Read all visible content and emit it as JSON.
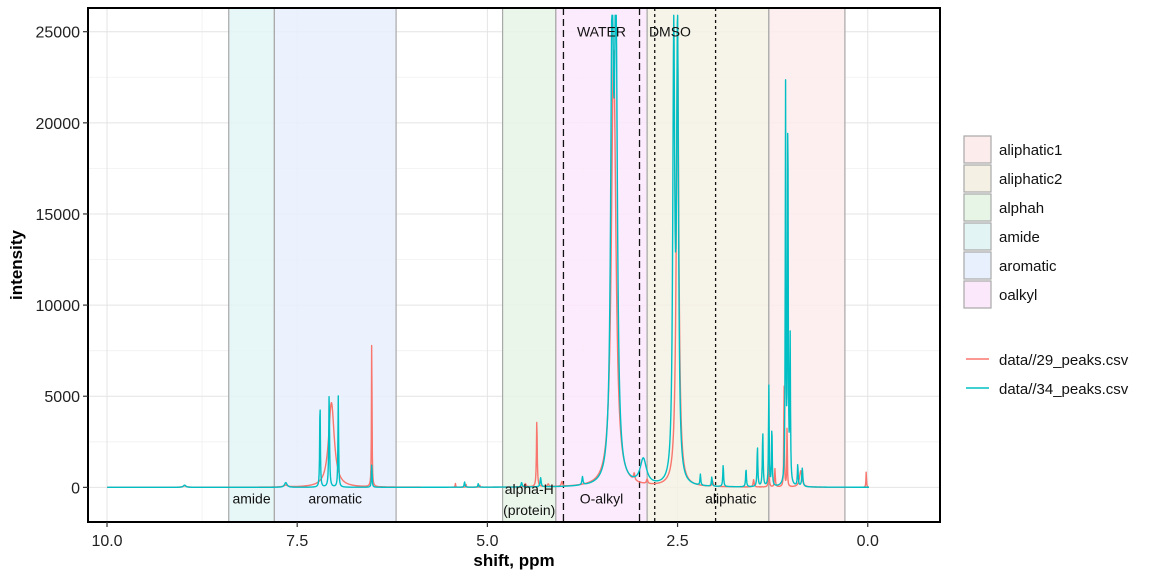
{
  "chart_data": {
    "type": "line",
    "title": "",
    "xlabel": "shift, ppm",
    "ylabel": "intensity",
    "xlim": [
      10.25,
      -0.95
    ],
    "ylim": [
      -1900,
      26300
    ],
    "x_reversed": true,
    "grid": true,
    "legend_position": "right",
    "x_ticks": [
      {
        "value": 10.0,
        "label": "10.0"
      },
      {
        "value": 7.5,
        "label": "7.5"
      },
      {
        "value": 5.0,
        "label": "5.0"
      },
      {
        "value": 2.5,
        "label": "2.5"
      },
      {
        "value": 0.0,
        "label": "0.0"
      }
    ],
    "y_ticks": [
      {
        "value": 0,
        "label": "0"
      },
      {
        "value": 5000,
        "label": "5000"
      },
      {
        "value": 10000,
        "label": "10000"
      },
      {
        "value": 15000,
        "label": "15000"
      },
      {
        "value": 20000,
        "label": "20000"
      },
      {
        "value": 25000,
        "label": "25000"
      }
    ],
    "regions": [
      {
        "name": "amide",
        "from": 8.4,
        "to": 7.8,
        "color": "#e3f4f4"
      },
      {
        "name": "aromatic",
        "from": 7.8,
        "to": 6.2,
        "color": "#e9f0fd"
      },
      {
        "name": "alphah",
        "from": 4.8,
        "to": 4.1,
        "color": "#e6f5e6"
      },
      {
        "name": "oalkyl",
        "from": 4.1,
        "to": 2.9,
        "color": "#fbe8fb"
      },
      {
        "name": "aliphatic2",
        "from": 2.9,
        "to": 1.3,
        "color": "#f4f1e4"
      },
      {
        "name": "aliphatic1",
        "from": 1.3,
        "to": 0.3,
        "color": "#fdecec"
      }
    ],
    "region_labels": [
      {
        "text": "amide",
        "x": 8.1,
        "y": -600
      },
      {
        "text": "aromatic",
        "x": 7.0,
        "y": -600
      },
      {
        "text": "alpha-H",
        "x": 4.45,
        "y": -100
      },
      {
        "text": "(protein)",
        "x": 4.45,
        "y": -1250
      },
      {
        "text": "O-alkyl",
        "x": 3.5,
        "y": -600
      },
      {
        "text": "aliphatic",
        "x": 1.8,
        "y": -600
      }
    ],
    "annotations": [
      {
        "text": "WATER",
        "x": 3.5,
        "y": 25000
      },
      {
        "text": "DMSO",
        "x": 2.6,
        "y": 25000
      }
    ],
    "vlines": [
      {
        "x": 4.0,
        "style": "dashed"
      },
      {
        "x": 3.0,
        "style": "dashed"
      },
      {
        "x": 2.8,
        "style": "dotted"
      },
      {
        "x": 2.0,
        "style": "dotted"
      }
    ],
    "legend_regions": [
      {
        "name": "aliphatic1",
        "color": "#fdecec"
      },
      {
        "name": "aliphatic2",
        "color": "#f4f1e4"
      },
      {
        "name": "alphah",
        "color": "#e6f5e6"
      },
      {
        "name": "amide",
        "color": "#e3f4f4"
      },
      {
        "name": "aromatic",
        "color": "#e9f0fd"
      },
      {
        "name": "oalkyl",
        "color": "#fbe8fb"
      }
    ],
    "series": [
      {
        "name": "data//29_peaks.csv",
        "color": "#f8766d",
        "baseline": 0,
        "peaks": [
          {
            "x": 8.98,
            "h": 80,
            "w": 0.03
          },
          {
            "x": 7.65,
            "h": 100,
            "w": 0.03
          },
          {
            "x": 7.05,
            "h": 4650,
            "w": 0.045
          },
          {
            "x": 6.52,
            "h": 8600,
            "w": 0.004
          },
          {
            "x": 5.42,
            "h": 200,
            "w": 0.004
          },
          {
            "x": 5.28,
            "h": 150,
            "w": 0.004
          },
          {
            "x": 5.1,
            "h": 120,
            "w": 0.004
          },
          {
            "x": 4.5,
            "h": 180,
            "w": 0.01
          },
          {
            "x": 4.35,
            "h": 3700,
            "w": 0.006
          },
          {
            "x": 4.2,
            "h": 150,
            "w": 0.01
          },
          {
            "x": 4.02,
            "h": 250,
            "w": 0.01
          },
          {
            "x": 3.34,
            "h": 24000,
            "w": 0.035
          },
          {
            "x": 3.07,
            "h": 380,
            "w": 0.01
          },
          {
            "x": 2.9,
            "h": 250,
            "w": 0.01
          },
          {
            "x": 2.5,
            "h": 24200,
            "w": 0.02
          },
          {
            "x": 2.04,
            "h": 300,
            "w": 0.008
          },
          {
            "x": 1.5,
            "h": 400,
            "w": 0.008
          },
          {
            "x": 1.3,
            "h": 1200,
            "w": 0.006
          },
          {
            "x": 1.22,
            "h": 1000,
            "w": 0.006
          },
          {
            "x": 1.1,
            "h": 6100,
            "w": 0.004
          },
          {
            "x": 1.06,
            "h": 3500,
            "w": 0.004
          },
          {
            "x": 0.88,
            "h": 900,
            "w": 0.02
          },
          {
            "x": 0.02,
            "h": 850,
            "w": 0.004
          }
        ]
      },
      {
        "name": "data//34_peaks.csv",
        "color": "#00bfc4",
        "baseline": 0,
        "peaks": [
          {
            "x": 8.98,
            "h": 120,
            "w": 0.02
          },
          {
            "x": 7.65,
            "h": 260,
            "w": 0.02
          },
          {
            "x": 7.2,
            "h": 4900,
            "w": 0.005
          },
          {
            "x": 7.08,
            "h": 5200,
            "w": 0.006
          },
          {
            "x": 6.96,
            "h": 5000,
            "w": 0.005
          },
          {
            "x": 6.52,
            "h": 1300,
            "w": 0.005
          },
          {
            "x": 5.3,
            "h": 300,
            "w": 0.006
          },
          {
            "x": 5.12,
            "h": 200,
            "w": 0.006
          },
          {
            "x": 4.55,
            "h": 250,
            "w": 0.008
          },
          {
            "x": 4.3,
            "h": 500,
            "w": 0.008
          },
          {
            "x": 3.75,
            "h": 450,
            "w": 0.008
          },
          {
            "x": 3.36,
            "h": 24400,
            "w": 0.022
          },
          {
            "x": 3.31,
            "h": 24400,
            "w": 0.022
          },
          {
            "x": 2.95,
            "h": 1400,
            "w": 0.05
          },
          {
            "x": 2.55,
            "h": 24000,
            "w": 0.015
          },
          {
            "x": 2.5,
            "h": 24300,
            "w": 0.015
          },
          {
            "x": 2.2,
            "h": 600,
            "w": 0.006
          },
          {
            "x": 2.05,
            "h": 500,
            "w": 0.006
          },
          {
            "x": 1.9,
            "h": 1200,
            "w": 0.006
          },
          {
            "x": 1.6,
            "h": 1000,
            "w": 0.006
          },
          {
            "x": 1.45,
            "h": 2200,
            "w": 0.006
          },
          {
            "x": 1.38,
            "h": 3000,
            "w": 0.006
          },
          {
            "x": 1.3,
            "h": 5600,
            "w": 0.005
          },
          {
            "x": 1.26,
            "h": 3400,
            "w": 0.005
          },
          {
            "x": 1.08,
            "h": 21700,
            "w": 0.005
          },
          {
            "x": 1.05,
            "h": 21500,
            "w": 0.005
          },
          {
            "x": 1.02,
            "h": 8000,
            "w": 0.005
          },
          {
            "x": 0.92,
            "h": 1200,
            "w": 0.006
          },
          {
            "x": 0.86,
            "h": 1000,
            "w": 0.008
          }
        ]
      }
    ]
  }
}
